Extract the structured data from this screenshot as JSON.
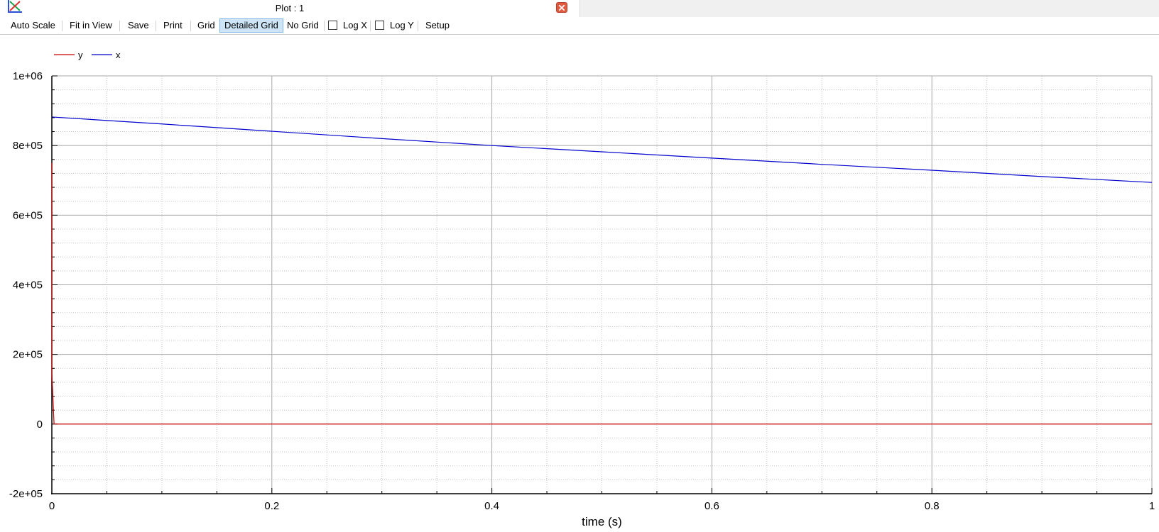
{
  "window": {
    "title": "Plot : 1"
  },
  "toolbar": {
    "auto_scale": "Auto Scale",
    "fit_in_view": "Fit in View",
    "save": "Save",
    "print": "Print",
    "grid": "Grid",
    "detailed_grid": "Detailed Grid",
    "no_grid": "No Grid",
    "log_x": "Log X",
    "log_y": "Log Y",
    "setup": "Setup",
    "log_x_checked": false,
    "log_y_checked": false,
    "active_grid_mode": "Detailed Grid"
  },
  "icons": [
    "plot-window-icon",
    "close-icon"
  ],
  "colors": {
    "y": "#cc0000",
    "x": "#0000cc",
    "grid_major": "#a8a8a8",
    "grid_minor": "#c4c4c4",
    "active_button": "#cde5f7"
  },
  "chart_data": {
    "type": "line",
    "title": "",
    "xlabel": "time (s)",
    "ylabel": "",
    "xlim": [
      0,
      1
    ],
    "ylim": [
      -200000,
      1000000
    ],
    "grid": "detailed",
    "legend_position": "top-left",
    "x_ticks": [
      "0",
      "0.2",
      "0.4",
      "0.6",
      "0.8",
      "1"
    ],
    "y_ticks": [
      "-2e+05",
      "0",
      "2e+05",
      "4e+05",
      "6e+05",
      "8e+05",
      "1e+06"
    ],
    "series": [
      {
        "name": "y",
        "color": "#cc0000",
        "x": [
          0,
          0,
          0.002,
          0.01,
          0.1,
          0.2,
          0.4,
          0.6,
          0.8,
          1.0
        ],
        "y": [
          750000,
          150000,
          0,
          0,
          0,
          0,
          0,
          0,
          0,
          0
        ]
      },
      {
        "name": "x",
        "color": "#0000cc",
        "x": [
          0,
          0.1,
          0.2,
          0.3,
          0.4,
          0.5,
          0.6,
          0.7,
          0.8,
          0.9,
          1.0
        ],
        "y": [
          882000,
          862000,
          841000,
          820000,
          800000,
          782000,
          764000,
          746000,
          729000,
          711000,
          694000
        ]
      }
    ]
  }
}
